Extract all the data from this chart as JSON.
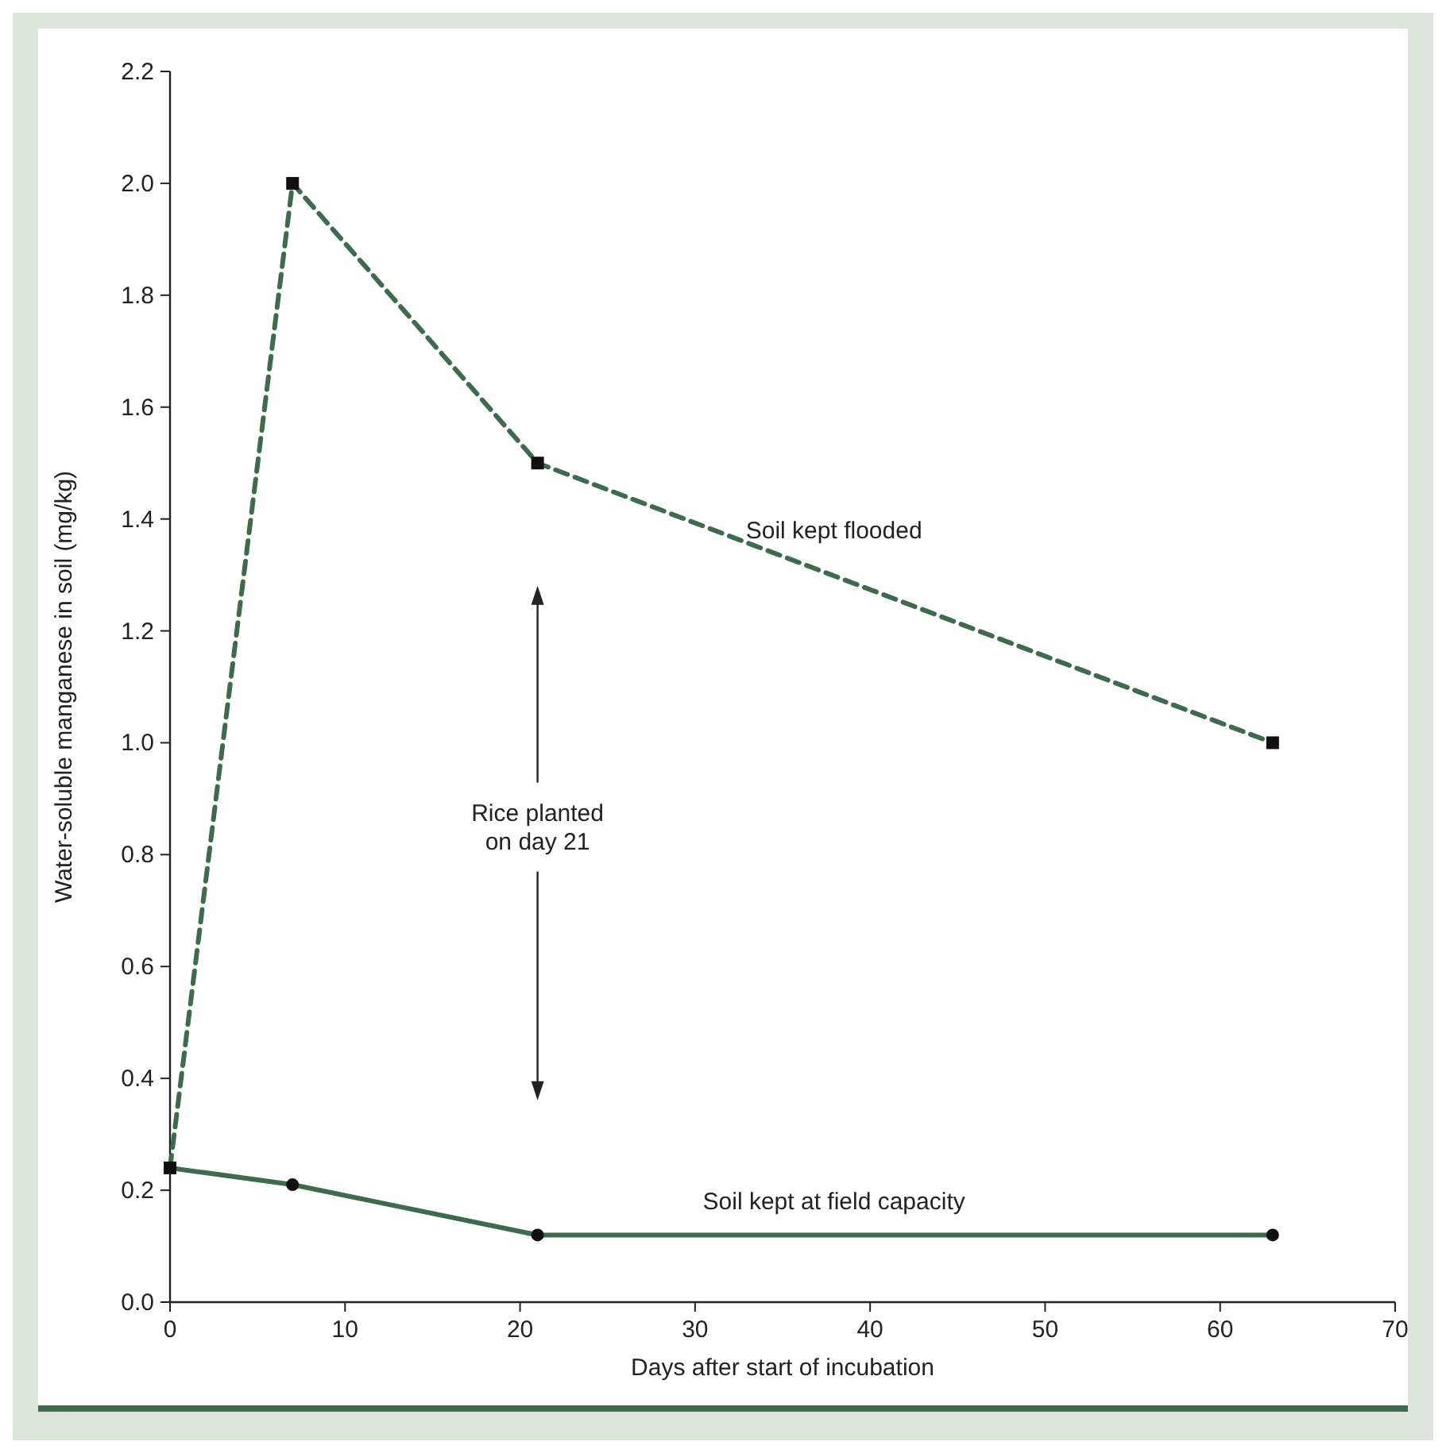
{
  "chart_data": {
    "type": "line",
    "xlabel": "Days after start of incubation",
    "ylabel": "Water-soluble manganese in soil (mg/kg)",
    "xlim": [
      0,
      70
    ],
    "xticks": [
      0,
      10,
      20,
      30,
      40,
      50,
      60,
      70
    ],
    "ylim": [
      0,
      2.2
    ],
    "yticks": [
      {
        "value": 0,
        "label": "0.0"
      },
      {
        "value": 0.2,
        "label": "0.2"
      },
      {
        "value": 0.4,
        "label": "0.4"
      },
      {
        "value": 0.6,
        "label": "0.6"
      },
      {
        "value": 0.8,
        "label": "0.8"
      },
      {
        "value": 1,
        "label": "1.0"
      },
      {
        "value": 1.2,
        "label": "1.2"
      },
      {
        "value": 1.4,
        "label": "1.4"
      },
      {
        "value": 1.6,
        "label": "1.6"
      },
      {
        "value": 1.8,
        "label": "1.8"
      },
      {
        "value": 2,
        "label": "2.0"
      },
      {
        "value": 2.2,
        "label": "2.2"
      }
    ],
    "grid": false,
    "series": [
      {
        "name": "Soil kept at field capacity",
        "color": "#3d6b4c",
        "x": [
          0,
          7,
          21,
          63
        ],
        "values": [
          0.24,
          0.21,
          0.12,
          0.12
        ],
        "marker": "circle",
        "line_style": "solid"
      },
      {
        "name": "Soil kept flooded",
        "color": "#3d6b4c",
        "x": [
          0,
          7,
          21,
          63
        ],
        "values": [
          0.24,
          2.0,
          1.5,
          1.0
        ],
        "marker": "square",
        "line_style": "dashed"
      }
    ],
    "annotations": [
      "Rice planted\non day 21"
    ]
  }
}
